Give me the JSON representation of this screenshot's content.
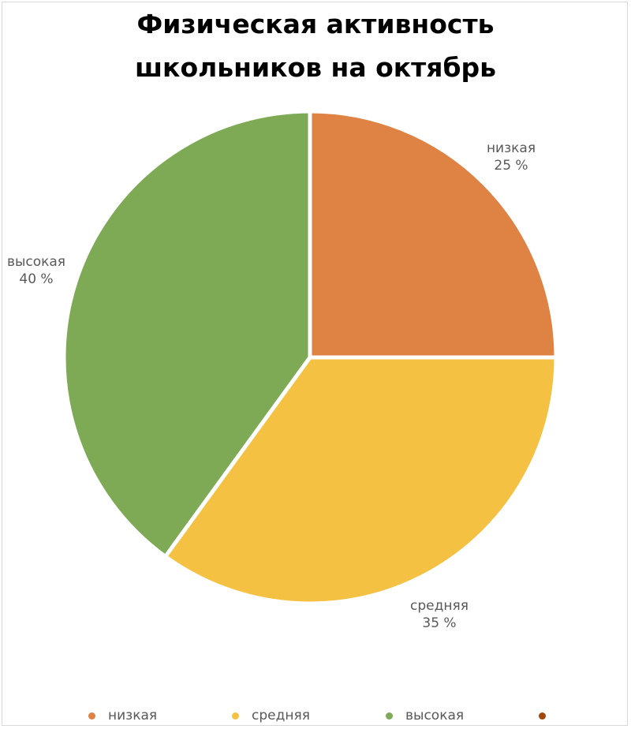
{
  "chart_data": {
    "type": "pie",
    "title_lines": [
      "Физическая активность",
      "школьников на октябрь"
    ],
    "slices": [
      {
        "label": "низкая",
        "value": 25,
        "value_text": "25 %",
        "color": "#DE8344"
      },
      {
        "label": "средняя",
        "value": 35,
        "value_text": "35 %",
        "color": "#F4C142"
      },
      {
        "label": "высокая",
        "value": 40,
        "value_text": "40 %",
        "color": "#7EAA55"
      }
    ],
    "legend": {
      "placement": "bottom",
      "items": [
        {
          "label": "низкая",
          "color": "#DE8344"
        },
        {
          "label": "средняя",
          "color": "#F4C142"
        },
        {
          "label": "высокая",
          "color": "#7EAA55"
        },
        {
          "label": "",
          "color": "#9E480E"
        }
      ]
    }
  }
}
